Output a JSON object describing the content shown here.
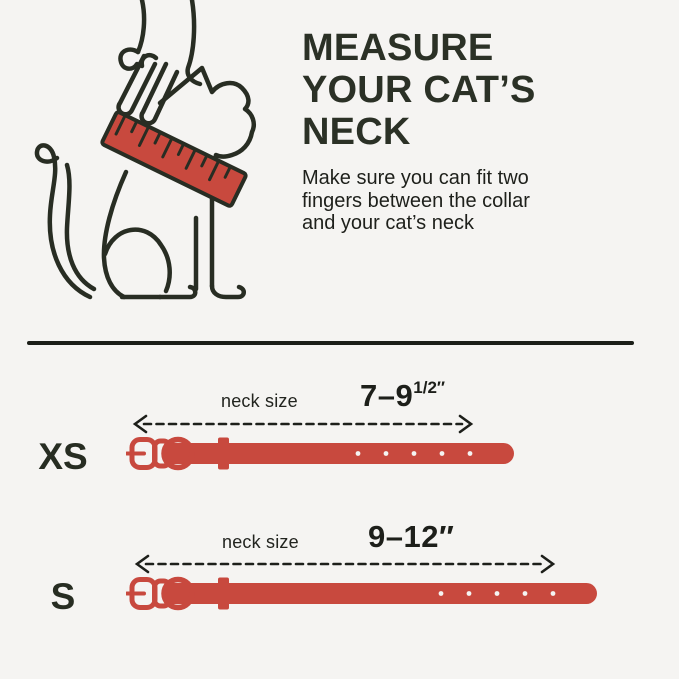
{
  "canvas": {
    "background": "#f5f4f2",
    "divider_color": "#1b1e18"
  },
  "palette": {
    "ink_green": "#2b3126",
    "text_dark": "#1e201b",
    "outline_dark": "#282d23",
    "collar_red": "#c8493e"
  },
  "header": {
    "title_lines": [
      "MEASURE",
      "YOUR CAT’S",
      "NECK"
    ],
    "subtitle_lines": [
      "Make sure you can fit two",
      "fingers between the collar",
      "and your cat’s neck"
    ]
  },
  "illustration": {
    "name": "hand-measuring-cat-neck-with-red-tape"
  },
  "sizes": [
    {
      "label": "XS",
      "measure_label": "neck size",
      "range": "7–9",
      "range_sup": "1/2″"
    },
    {
      "label": "S",
      "measure_label": "neck size",
      "range": "9–12″",
      "range_sup": ""
    }
  ]
}
